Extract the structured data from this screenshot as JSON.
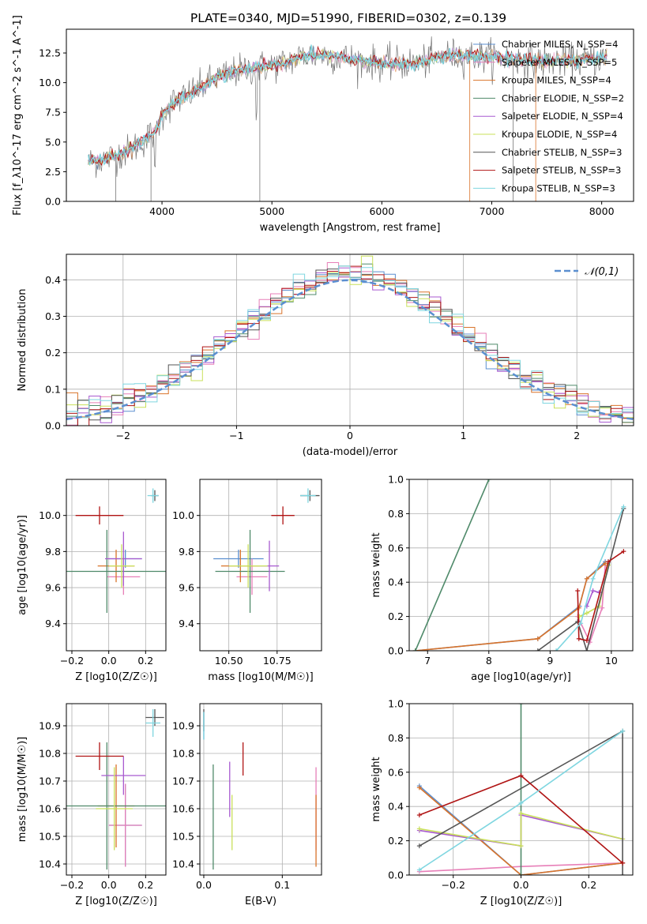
{
  "figure": {
    "title": "PLATE=0340, MJD=51990, FIBERID=0302, z=0.139"
  },
  "model_colors": [
    "#5b8fd0",
    "#e77fb8",
    "#d9732a",
    "#4f8a6a",
    "#a85ad0",
    "#c9e05a",
    "#555555",
    "#b01414",
    "#7fd6e0"
  ],
  "chart_data": [
    {
      "id": "spectrum",
      "type": "line",
      "title": "PLATE=0340, MJD=51990, FIBERID=0302, z=0.139",
      "xlabel": "wavelength [Angstrom, rest frame]",
      "ylabel": "Flux [f_λ10^-17 erg cm^-2 s^-1 A^-1]",
      "xlim": [
        3130,
        8290
      ],
      "ylim": [
        0,
        14.5
      ],
      "xticks": [
        4000,
        5000,
        6000,
        7000,
        8000
      ],
      "yticks": [
        0.0,
        2.5,
        5.0,
        7.5,
        10.0,
        12.5
      ],
      "grid": false,
      "legend_position": "top-right",
      "legend": [
        {
          "label": "Chabrier MILES, N_SSP=4",
          "color": "#5b8fd0"
        },
        {
          "label": "Salpeter MILES, N_SSP=5",
          "color": "#e77fb8"
        },
        {
          "label": "Kroupa MILES, N_SSP=4",
          "color": "#d9732a"
        },
        {
          "label": "Chabrier ELODIE, N_SSP=2",
          "color": "#4f8a6a"
        },
        {
          "label": "Salpeter ELODIE, N_SSP=4",
          "color": "#a85ad0"
        },
        {
          "label": "Kroupa ELODIE, N_SSP=4",
          "color": "#c9e05a"
        },
        {
          "label": "Chabrier STELIB, N_SSP=3",
          "color": "#555555"
        },
        {
          "label": "Salpeter STELIB, N_SSP=3",
          "color": "#b01414"
        },
        {
          "label": "Kroupa STELIB, N_SSP=3",
          "color": "#7fd6e0"
        }
      ],
      "continuum": {
        "x": [
          3330,
          3500,
          3700,
          3850,
          3950,
          4000,
          4100,
          4300,
          4500,
          4700,
          4900,
          5100,
          5300,
          5500,
          5700,
          6000,
          6300,
          6600,
          7000,
          7400,
          7800,
          8050
        ],
        "y": [
          3.3,
          3.6,
          4.3,
          5.2,
          6.0,
          7.3,
          8.3,
          9.3,
          10.4,
          11.0,
          11.3,
          11.6,
          12.3,
          12.3,
          12.0,
          11.6,
          11.6,
          12.3,
          12.2,
          11.8,
          11.9,
          12.1
        ]
      }
    },
    {
      "id": "residual_hist",
      "type": "histogram",
      "xlabel": "(data-model)/error",
      "ylabel": "Normed distribution",
      "xlim": [
        -2.5,
        2.5
      ],
      "ylim": [
        0,
        0.47
      ],
      "xticks": [
        -2,
        -1,
        0,
        1,
        2
      ],
      "yticks": [
        0.0,
        0.1,
        0.2,
        0.3,
        0.4
      ],
      "grid": true,
      "legend_position": "top-right",
      "reference_curve": {
        "label": "𝒩(0,1)",
        "mean": 0,
        "sigma": 1,
        "color": "#5b8fd0",
        "style": "dashed"
      }
    },
    {
      "id": "age_vs_Z",
      "type": "errorbar",
      "xlabel": "Z [log10(Z/Z☉)]",
      "ylabel": "age  [log10(age/yr)]",
      "xlim": [
        -0.23,
        0.31
      ],
      "ylim": [
        9.25,
        10.2
      ],
      "xticks": [
        -0.2,
        0.0,
        0.2
      ],
      "yticks": [
        9.4,
        9.6,
        9.8,
        10.0
      ],
      "grid": true,
      "points": [
        {
          "model": 0,
          "x": 0.09,
          "y": 9.76,
          "xerr": 0.09,
          "yerr": 0.05
        },
        {
          "model": 1,
          "x": 0.08,
          "y": 9.66,
          "xerr": 0.09,
          "yerr": 0.1
        },
        {
          "model": 2,
          "x": 0.04,
          "y": 9.72,
          "xerr": 0.1,
          "yerr": 0.09
        },
        {
          "model": 3,
          "x": -0.01,
          "y": 9.69,
          "xerr": 0.32,
          "yerr": 0.23
        },
        {
          "model": 4,
          "x": 0.08,
          "y": 9.76,
          "xerr": 0.1,
          "yerr": 0.15
        },
        {
          "model": 5,
          "x": 0.07,
          "y": 9.72,
          "xerr": 0.07,
          "yerr": 0.12
        },
        {
          "model": 6,
          "x": 0.25,
          "y": 10.11,
          "xerr": 0.02,
          "yerr": 0.03
        },
        {
          "model": 7,
          "x": -0.05,
          "y": 10.0,
          "xerr": 0.13,
          "yerr": 0.05
        },
        {
          "model": 8,
          "x": 0.24,
          "y": 10.11,
          "xerr": 0.03,
          "yerr": 0.04
        }
      ]
    },
    {
      "id": "age_vs_mass",
      "type": "errorbar",
      "xlabel": "mass [log10(M/M☉)]",
      "ylabel": "",
      "xlim": [
        10.35,
        10.98
      ],
      "ylim": [
        9.25,
        10.2
      ],
      "xticks": [
        10.5,
        10.75
      ],
      "yticks": [
        9.4,
        9.6,
        9.8,
        10.0
      ],
      "grid": true,
      "points": [
        {
          "model": 0,
          "x": 10.55,
          "y": 9.76,
          "xerr": 0.13,
          "yerr": 0.05
        },
        {
          "model": 1,
          "x": 10.62,
          "y": 9.66,
          "xerr": 0.08,
          "yerr": 0.1
        },
        {
          "model": 2,
          "x": 10.56,
          "y": 9.72,
          "xerr": 0.1,
          "yerr": 0.09
        },
        {
          "model": 3,
          "x": 10.61,
          "y": 9.69,
          "xerr": 0.18,
          "yerr": 0.23
        },
        {
          "model": 4,
          "x": 10.71,
          "y": 9.72,
          "xerr": 0.05,
          "yerr": 0.14
        },
        {
          "model": 5,
          "x": 10.6,
          "y": 9.72,
          "xerr": 0.1,
          "yerr": 0.12
        },
        {
          "model": 6,
          "x": 10.92,
          "y": 10.11,
          "xerr": 0.05,
          "yerr": 0.03
        },
        {
          "model": 7,
          "x": 10.78,
          "y": 10.0,
          "xerr": 0.06,
          "yerr": 0.05
        },
        {
          "model": 8,
          "x": 10.91,
          "y": 10.11,
          "xerr": 0.04,
          "yerr": 0.04
        }
      ]
    },
    {
      "id": "mass_weight_vs_age",
      "type": "line",
      "xlabel": "age  [log10(age/yr)]",
      "ylabel": "mass weight",
      "xlim": [
        6.7,
        10.35
      ],
      "ylim": [
        0,
        1.0
      ],
      "xticks": [
        7,
        8,
        9,
        10
      ],
      "yticks": [
        0.0,
        0.2,
        0.4,
        0.6,
        0.8,
        1.0
      ],
      "grid": true,
      "series": [
        {
          "model": 0,
          "points": [
            [
              6.8,
              0.0
            ],
            [
              8.8,
              0.07
            ],
            [
              9.48,
              0.26
            ],
            [
              9.6,
              0.42
            ],
            [
              9.9,
              0.52
            ]
          ]
        },
        {
          "model": 1,
          "points": [
            [
              9.45,
              0.2
            ],
            [
              9.65,
              0.05
            ],
            [
              9.85,
              0.25
            ],
            [
              9.9,
              0.5
            ]
          ]
        },
        {
          "model": 2,
          "points": [
            [
              6.8,
              0.0
            ],
            [
              8.8,
              0.07
            ],
            [
              9.47,
              0.25
            ],
            [
              9.6,
              0.42
            ],
            [
              9.9,
              0.51
            ]
          ]
        },
        {
          "model": 3,
          "points": [
            [
              6.8,
              0.0
            ],
            [
              8.0,
              1.0
            ]
          ]
        },
        {
          "model": 4,
          "points": [
            [
              9.6,
              0.26
            ],
            [
              9.7,
              0.35
            ],
            [
              9.8,
              0.34
            ]
          ]
        },
        {
          "model": 5,
          "points": [
            [
              9.48,
              0.2
            ],
            [
              9.6,
              0.22
            ],
            [
              9.8,
              0.26
            ],
            [
              9.95,
              0.5
            ]
          ]
        },
        {
          "model": 6,
          "points": [
            [
              8.8,
              0.0
            ],
            [
              9.45,
              0.17
            ],
            [
              9.6,
              0.0
            ],
            [
              10.2,
              0.83
            ]
          ]
        },
        {
          "model": 7,
          "points": [
            [
              9.45,
              0.35
            ],
            [
              9.47,
              0.07
            ],
            [
              9.6,
              0.06
            ],
            [
              9.95,
              0.52
            ],
            [
              10.2,
              0.58
            ]
          ]
        },
        {
          "model": 8,
          "points": [
            [
              9.1,
              0.0
            ],
            [
              9.5,
              0.16
            ],
            [
              9.7,
              0.42
            ],
            [
              10.2,
              0.84
            ]
          ]
        }
      ]
    },
    {
      "id": "mass_vs_Z",
      "type": "errorbar",
      "xlabel": "Z [log10(Z/Z☉)]",
      "ylabel": "mass [log10(M/M☉)]",
      "xlim": [
        -0.23,
        0.31
      ],
      "ylim": [
        10.36,
        10.98
      ],
      "xticks": [
        -0.2,
        0.0,
        0.2
      ],
      "yticks": [
        10.4,
        10.5,
        10.6,
        10.7,
        10.8,
        10.9
      ],
      "grid": true,
      "points": [
        {
          "model": 0,
          "x": 0.09,
          "y": 10.54,
          "xerr": 0.09,
          "yerr": 0.15
        },
        {
          "model": 1,
          "x": 0.09,
          "y": 10.54,
          "xerr": 0.09,
          "yerr": 0.15
        },
        {
          "model": 2,
          "x": 0.04,
          "y": 10.61,
          "xerr": 0.1,
          "yerr": 0.15
        },
        {
          "model": 3,
          "x": -0.01,
          "y": 10.61,
          "xerr": 0.32,
          "yerr": 0.23
        },
        {
          "model": 4,
          "x": 0.08,
          "y": 10.72,
          "xerr": 0.12,
          "yerr": 0.07
        },
        {
          "model": 5,
          "x": 0.03,
          "y": 10.6,
          "xerr": 0.1,
          "yerr": 0.15
        },
        {
          "model": 6,
          "x": 0.25,
          "y": 10.93,
          "xerr": 0.05,
          "yerr": 0.03
        },
        {
          "model": 7,
          "x": -0.05,
          "y": 10.79,
          "xerr": 0.13,
          "yerr": 0.05
        },
        {
          "model": 8,
          "x": 0.24,
          "y": 10.91,
          "xerr": 0.04,
          "yerr": 0.05
        }
      ]
    },
    {
      "id": "mass_vs_ebv",
      "type": "errorbar",
      "xlabel": "E(B-V)",
      "ylabel": "",
      "xlim": [
        -0.005,
        0.15
      ],
      "ylim": [
        10.36,
        10.98
      ],
      "xticks": [
        0.0,
        0.1
      ],
      "yticks": [
        10.4,
        10.5,
        10.6,
        10.7,
        10.8,
        10.9
      ],
      "grid": true,
      "points": [
        {
          "model": 0,
          "x": 0.0,
          "y": 10.9,
          "xerr": 0,
          "yerr": 0.05
        },
        {
          "model": 1,
          "x": 0.143,
          "y": 10.6,
          "xerr": 0,
          "yerr": 0.15
        },
        {
          "model": 2,
          "x": 0.143,
          "y": 10.52,
          "xerr": 0,
          "yerr": 0.13
        },
        {
          "model": 3,
          "x": 0.012,
          "y": 10.57,
          "xerr": 0,
          "yerr": 0.19
        },
        {
          "model": 4,
          "x": 0.033,
          "y": 10.67,
          "xerr": 0,
          "yerr": 0.1
        },
        {
          "model": 5,
          "x": 0.036,
          "y": 10.55,
          "xerr": 0,
          "yerr": 0.1
        },
        {
          "model": 6,
          "x": 0.0,
          "y": 10.92,
          "xerr": 0,
          "yerr": 0.04
        },
        {
          "model": 7,
          "x": 0.05,
          "y": 10.78,
          "xerr": 0,
          "yerr": 0.06
        },
        {
          "model": 8,
          "x": 0.0,
          "y": 10.9,
          "xerr": 0,
          "yerr": 0.05
        }
      ]
    },
    {
      "id": "mass_weight_vs_Z",
      "type": "line",
      "xlabel": "Z [log10(Z/Z☉)]",
      "ylabel": "mass weight",
      "xlim": [
        -0.33,
        0.33
      ],
      "ylim": [
        0,
        1.0
      ],
      "xticks": [
        -0.2,
        0.0,
        0.2
      ],
      "yticks": [
        0.0,
        0.2,
        0.4,
        0.6,
        0.8,
        1.0
      ],
      "grid": true,
      "series": [
        {
          "model": 0,
          "points": [
            [
              -0.3,
              0.52
            ],
            [
              0.0,
              0.0
            ],
            [
              0.3,
              0.07
            ]
          ]
        },
        {
          "model": 1,
          "points": [
            [
              -0.3,
              0.02
            ],
            [
              0.0,
              0.05
            ],
            [
              0.3,
              0.07
            ]
          ]
        },
        {
          "model": 2,
          "points": [
            [
              -0.3,
              0.51
            ],
            [
              0.0,
              0.0
            ],
            [
              0.3,
              0.07
            ]
          ]
        },
        {
          "model": 3,
          "points": [
            [
              0.0,
              0.0
            ],
            [
              0.0,
              1.0
            ]
          ]
        },
        {
          "model": 4,
          "points": [
            [
              -0.3,
              0.26
            ],
            [
              0.0,
              0.17
            ],
            [
              0.0,
              0.35
            ],
            [
              0.3,
              0.21
            ]
          ]
        },
        {
          "model": 5,
          "points": [
            [
              -0.3,
              0.27
            ],
            [
              0.0,
              0.17
            ],
            [
              0.0,
              0.36
            ],
            [
              0.3,
              0.21
            ]
          ]
        },
        {
          "model": 6,
          "points": [
            [
              -0.3,
              0.17
            ],
            [
              0.3,
              0.84
            ],
            [
              0.3,
              0.0
            ]
          ]
        },
        {
          "model": 7,
          "points": [
            [
              -0.3,
              0.35
            ],
            [
              0.0,
              0.58
            ],
            [
              0.3,
              0.07
            ]
          ]
        },
        {
          "model": 8,
          "points": [
            [
              -0.3,
              0.03
            ],
            [
              0.0,
              0.42
            ],
            [
              0.3,
              0.84
            ]
          ]
        }
      ]
    }
  ]
}
